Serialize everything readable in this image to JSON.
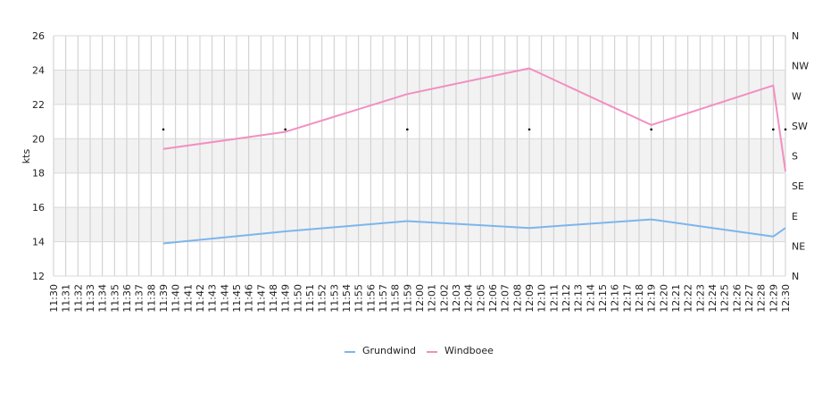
{
  "chart_data": {
    "type": "line",
    "ylabel": "kts",
    "ylim": [
      12,
      26
    ],
    "yticks": [
      12,
      14,
      16,
      18,
      20,
      22,
      24,
      26
    ],
    "y2_labels": [
      "N",
      "NE",
      "E",
      "SE",
      "S",
      "SW",
      "W",
      "NW",
      "N"
    ],
    "x_labels": [
      "11:30",
      "11:31",
      "11:32",
      "11:33",
      "11:34",
      "11:35",
      "11:36",
      "11:37",
      "11:38",
      "11:39",
      "11:40",
      "11:41",
      "11:42",
      "11:43",
      "11:44",
      "11:45",
      "11:46",
      "11:47",
      "11:48",
      "11:49",
      "11:50",
      "11:51",
      "11:52",
      "11:53",
      "11:54",
      "11:55",
      "11:56",
      "11:57",
      "11:58",
      "11:59",
      "12:00",
      "12:01",
      "12:02",
      "12:03",
      "12:04",
      "12:05",
      "12:06",
      "12:07",
      "12:08",
      "12:09",
      "12:10",
      "12:11",
      "12:12",
      "12:13",
      "12:14",
      "12:15",
      "12:16",
      "12:17",
      "12:18",
      "12:19",
      "12:20",
      "12:21",
      "12:22",
      "12:23",
      "12:24",
      "12:25",
      "12:26",
      "12:27",
      "12:28",
      "12:29",
      "12:30"
    ],
    "grid": true,
    "legend_position": "bottom",
    "series": [
      {
        "name": "Grundwind",
        "color": "#7cb5ec",
        "x": [
          9,
          19,
          29,
          39,
          49,
          59,
          60
        ],
        "y": [
          13.9,
          14.6,
          15.2,
          14.8,
          15.3,
          14.3,
          14.8
        ]
      },
      {
        "name": "Windboee",
        "color": "#f28fc1",
        "x": [
          9,
          19,
          29,
          39,
          49,
          59,
          60
        ],
        "y": [
          19.4,
          20.4,
          22.6,
          24.1,
          20.8,
          23.1,
          18.1
        ]
      }
    ],
    "direction_markers": {
      "x": [
        9,
        19,
        29,
        39,
        49,
        59,
        60
      ],
      "y2_index": [
        5,
        5,
        5,
        5,
        5,
        5,
        5
      ]
    }
  }
}
